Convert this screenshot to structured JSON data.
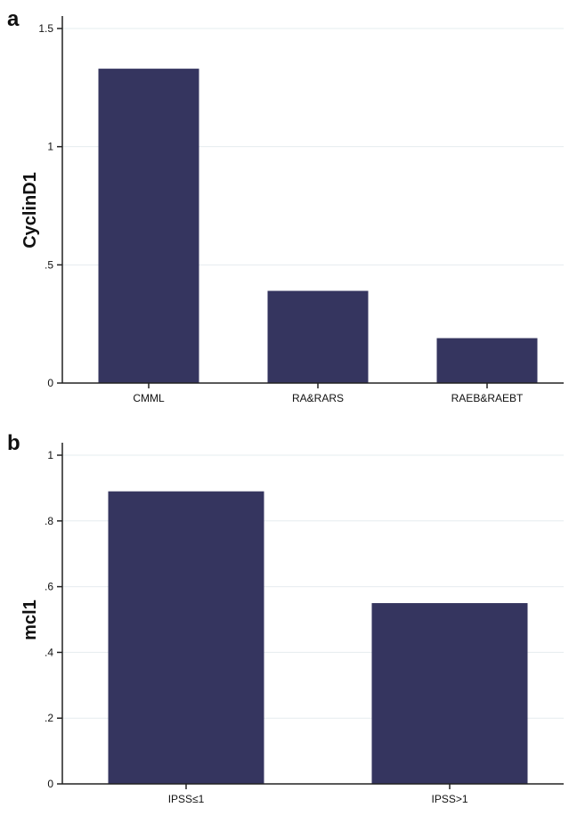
{
  "chart_data": [
    {
      "type": "bar",
      "panel": "a",
      "ylabel": "CyclinD1",
      "xlabel": "",
      "categories": [
        "CMML",
        "RA&RARS",
        "RAEB&RAEBT"
      ],
      "values": [
        1.33,
        0.39,
        0.19
      ],
      "ylim": [
        0,
        1.5
      ],
      "yticks": [
        0,
        0.5,
        1,
        1.5
      ],
      "ytick_labels": [
        "0",
        ".5",
        "1",
        "1.5"
      ],
      "grid": true,
      "bar_color": "#35355f"
    },
    {
      "type": "bar",
      "panel": "b",
      "ylabel": "mcl1",
      "xlabel": "",
      "categories": [
        "IPSS≤1",
        "IPSS>1"
      ],
      "values": [
        0.89,
        0.55
      ],
      "ylim": [
        0,
        1
      ],
      "yticks": [
        0,
        0.2,
        0.4,
        0.6,
        0.8,
        1
      ],
      "ytick_labels": [
        "0",
        ".2",
        ".4",
        ".6",
        ".8",
        "1"
      ],
      "grid": true,
      "bar_color": "#35355f"
    }
  ]
}
